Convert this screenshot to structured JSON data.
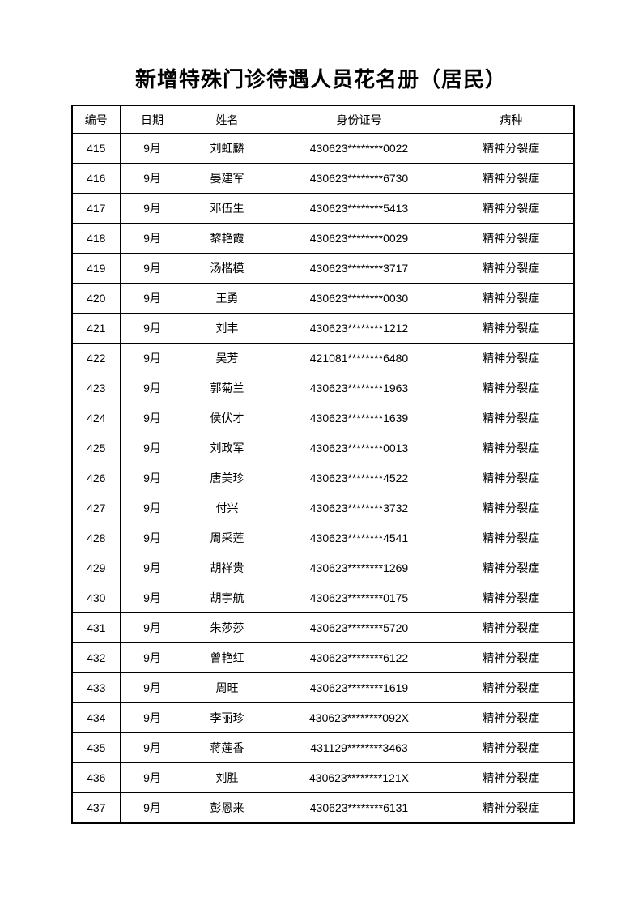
{
  "document": {
    "title": "新增特殊门诊待遇人员花名册（居民）"
  },
  "table": {
    "headers": [
      "编号",
      "日期",
      "姓名",
      "身份证号",
      "病种"
    ],
    "rows": [
      [
        "415",
        "9月",
        "刘虹麟",
        "430623********0022",
        "精神分裂症"
      ],
      [
        "416",
        "9月",
        "晏建军",
        "430623********6730",
        "精神分裂症"
      ],
      [
        "417",
        "9月",
        "邓伍生",
        "430623********5413",
        "精神分裂症"
      ],
      [
        "418",
        "9月",
        "黎艳霞",
        "430623********0029",
        "精神分裂症"
      ],
      [
        "419",
        "9月",
        "汤楷模",
        "430623********3717",
        "精神分裂症"
      ],
      [
        "420",
        "9月",
        "王勇",
        "430623********0030",
        "精神分裂症"
      ],
      [
        "421",
        "9月",
        "刘丰",
        "430623********1212",
        "精神分裂症"
      ],
      [
        "422",
        "9月",
        "吴芳",
        "421081********6480",
        "精神分裂症"
      ],
      [
        "423",
        "9月",
        "郭菊兰",
        "430623********1963",
        "精神分裂症"
      ],
      [
        "424",
        "9月",
        "侯伏才",
        "430623********1639",
        "精神分裂症"
      ],
      [
        "425",
        "9月",
        "刘政军",
        "430623********0013",
        "精神分裂症"
      ],
      [
        "426",
        "9月",
        "唐美珍",
        "430623********4522",
        "精神分裂症"
      ],
      [
        "427",
        "9月",
        "付兴",
        "430623********3732",
        "精神分裂症"
      ],
      [
        "428",
        "9月",
        "周采莲",
        "430623********4541",
        "精神分裂症"
      ],
      [
        "429",
        "9月",
        "胡祥贵",
        "430623********1269",
        "精神分裂症"
      ],
      [
        "430",
        "9月",
        "胡宇航",
        "430623********0175",
        "精神分裂症"
      ],
      [
        "431",
        "9月",
        "朱莎莎",
        "430623********5720",
        "精神分裂症"
      ],
      [
        "432",
        "9月",
        "曾艳红",
        "430623********6122",
        "精神分裂症"
      ],
      [
        "433",
        "9月",
        "周旺",
        "430623********1619",
        "精神分裂症"
      ],
      [
        "434",
        "9月",
        "李丽珍",
        "430623********092X",
        "精神分裂症"
      ],
      [
        "435",
        "9月",
        "蒋莲香",
        "431129********3463",
        "精神分裂症"
      ],
      [
        "436",
        "9月",
        "刘胜",
        "430623********121X",
        "精神分裂症"
      ],
      [
        "437",
        "9月",
        "彭恩来",
        "430623********6131",
        "精神分裂症"
      ]
    ]
  }
}
